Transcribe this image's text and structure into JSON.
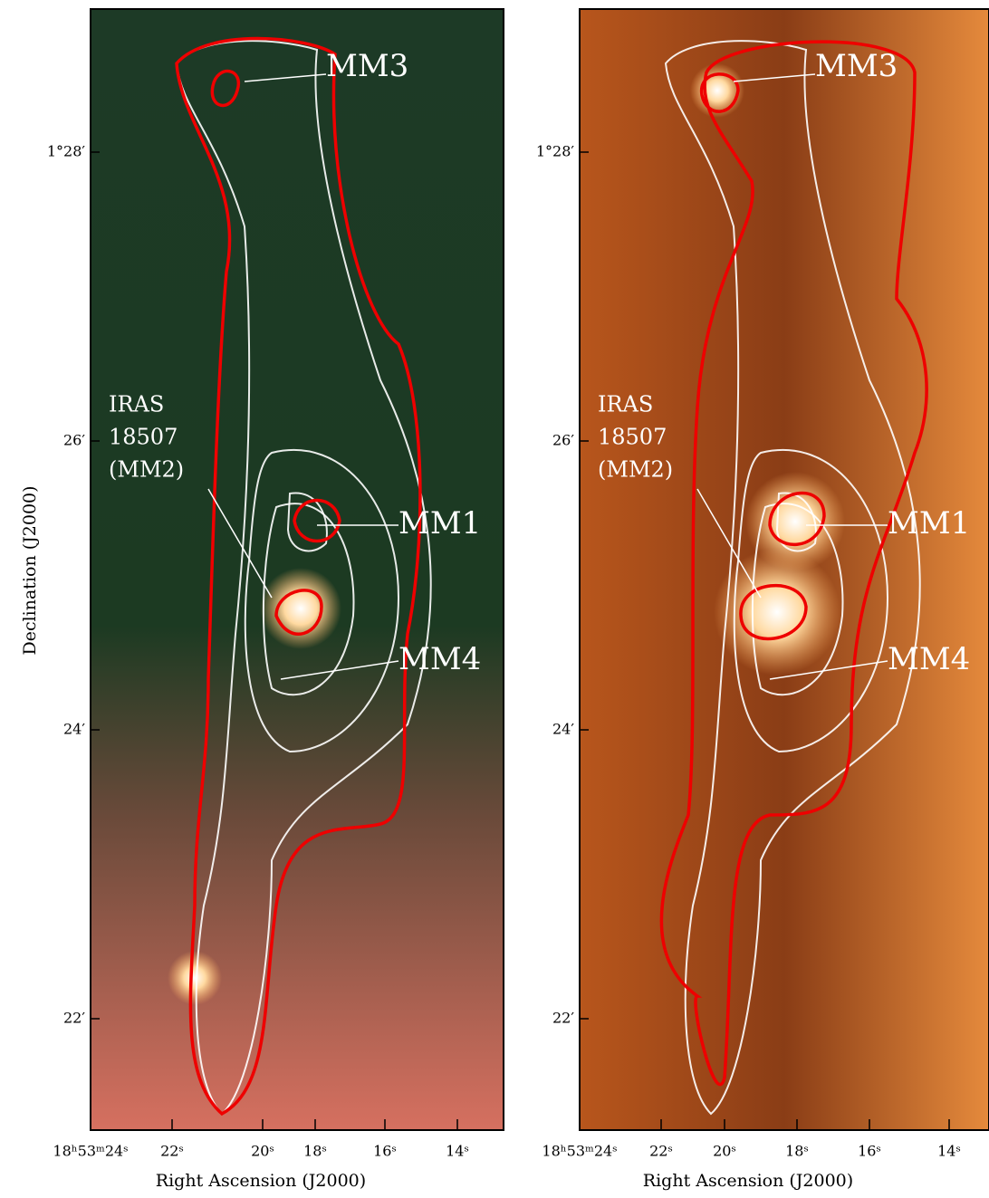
{
  "panels": [
    {
      "labels": {
        "mm3": "MM3",
        "iras": [
          "IRAS",
          "18507",
          "(MM2)"
        ],
        "mm1": "MM1",
        "mm4": "MM4"
      },
      "y_label": "Declination (J2000)",
      "y_ticks": [
        "1°28′",
        "26′",
        "24′",
        "22′"
      ],
      "x_ticks": [
        "18ʰ53ᵐ24ˢ",
        "22ˢ",
        "20ˢ",
        "18ˢ",
        "16ˢ",
        "14ˢ"
      ],
      "x_label": "Right Ascension (J2000)"
    },
    {
      "labels": {
        "mm3": "MM3",
        "iras": [
          "IRAS",
          "18507",
          "(MM2)"
        ],
        "mm1": "MM1",
        "mm4": "MM4"
      },
      "y_ticks": [
        "1°28′",
        "26′",
        "24′",
        "22′"
      ],
      "x_ticks": [
        "18ʰ53ᵐ24ˢ",
        "22ˢ",
        "20ˢ",
        "18ˢ",
        "16ˢ",
        "14ˢ"
      ],
      "x_label": "Right Ascension (J2000)"
    }
  ]
}
